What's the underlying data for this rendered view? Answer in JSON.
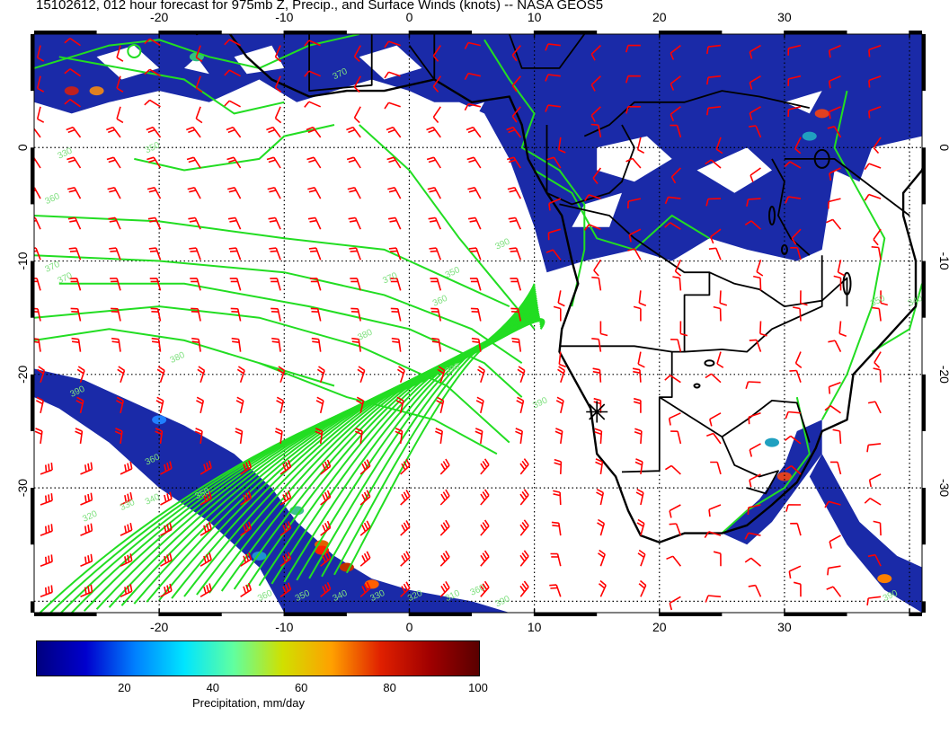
{
  "title": "15102612, 012 hour forecast for 975mb Z, Precip., and Surface Winds (knots) -- NASA GEOS5",
  "map": {
    "lon_range": [
      -30,
      41
    ],
    "lat_range": [
      -41,
      10
    ],
    "lon_tick_labels": [
      "-20",
      "-10",
      "0",
      "10",
      "20",
      "30"
    ],
    "lat_tick_labels": [
      "0",
      "-10",
      "-20",
      "-30"
    ],
    "grid": "dotted 10-degree",
    "contour_color": "#22dd22",
    "wind_barb_color": "#ff0000",
    "coastline_color": "#000000",
    "precip_color": "#1a2aa8",
    "contour_labels": [
      "330",
      "350",
      "360",
      "370",
      "370",
      "350",
      "360",
      "380",
      "390",
      "370",
      "390",
      "380",
      "370",
      "390",
      "360",
      "350",
      "340",
      "330",
      "320",
      "390",
      "360",
      "350",
      "340",
      "330",
      "320",
      "310",
      "390",
      "360",
      "350",
      "340",
      "390"
    ],
    "marker": "asterisk"
  },
  "colorbar": {
    "label": "Precipitation, mm/day",
    "tick_labels": [
      "20",
      "40",
      "60",
      "80",
      "100"
    ],
    "range": [
      0,
      100
    ],
    "gradient_colors": [
      "#000080",
      "#0000cd",
      "#0080ff",
      "#00e5ff",
      "#60ffa0",
      "#d0e000",
      "#ffa000",
      "#e02000",
      "#a00000",
      "#5a0000"
    ]
  }
}
